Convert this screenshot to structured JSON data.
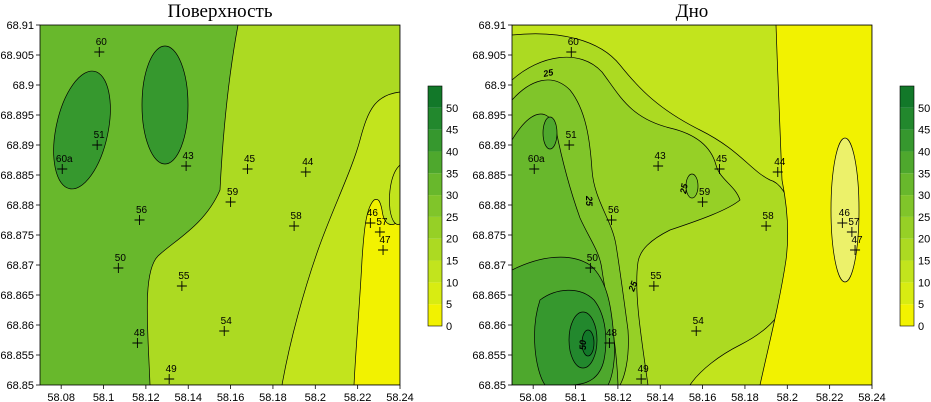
{
  "chart_data": [
    {
      "type": "contour",
      "title": "Поверхность",
      "xlabel": "",
      "ylabel": "",
      "xlim": [
        58.07,
        58.24
      ],
      "ylim": [
        68.85,
        68.91
      ],
      "xticks": [
        "58.08",
        "58.1",
        "58.12",
        "58.14",
        "58.16",
        "58.18",
        "58.2",
        "58.22",
        "58.24"
      ],
      "yticks": [
        "68.85",
        "68.855",
        "68.86",
        "68.865",
        "68.87",
        "68.875",
        "68.88",
        "68.885",
        "68.89",
        "68.895",
        "68.9",
        "68.905",
        "68.91"
      ],
      "colorbar": {
        "levels": [
          "0",
          "5",
          "10",
          "15",
          "20",
          "25",
          "30",
          "35",
          "40",
          "45",
          "50"
        ],
        "colors": [
          "#f2f200",
          "#d8ec12",
          "#c2e41d",
          "#acda22",
          "#96d026",
          "#80c52a",
          "#68b82c",
          "#4ea82d",
          "#36982e",
          "#22882d",
          "#127829"
        ]
      },
      "contour_labels": [],
      "stations": [
        {
          "name": "60",
          "x": 58.098,
          "y": 68.9055
        },
        {
          "name": "51",
          "x": 58.097,
          "y": 68.89
        },
        {
          "name": "60a",
          "x": 58.0805,
          "y": 68.886
        },
        {
          "name": "43",
          "x": 58.139,
          "y": 68.8865
        },
        {
          "name": "45",
          "x": 58.168,
          "y": 68.886
        },
        {
          "name": "44",
          "x": 58.1955,
          "y": 68.8855
        },
        {
          "name": "59",
          "x": 58.16,
          "y": 68.8805
        },
        {
          "name": "56",
          "x": 58.117,
          "y": 68.8775
        },
        {
          "name": "58",
          "x": 58.19,
          "y": 68.8765
        },
        {
          "name": "46",
          "x": 58.226,
          "y": 68.877
        },
        {
          "name": "57",
          "x": 58.2305,
          "y": 68.8755
        },
        {
          "name": "47",
          "x": 58.232,
          "y": 68.8725
        },
        {
          "name": "50",
          "x": 58.107,
          "y": 68.8695
        },
        {
          "name": "55",
          "x": 58.137,
          "y": 68.8665
        },
        {
          "name": "54",
          "x": 58.157,
          "y": 68.859
        },
        {
          "name": "48",
          "x": 58.116,
          "y": 68.857
        },
        {
          "name": "49",
          "x": 58.131,
          "y": 68.851
        }
      ]
    },
    {
      "type": "contour",
      "title": "Дно",
      "xlabel": "",
      "ylabel": "",
      "xlim": [
        58.07,
        58.24
      ],
      "ylim": [
        68.85,
        68.91
      ],
      "xticks": [
        "58.08",
        "58.1",
        "58.12",
        "58.14",
        "58.16",
        "58.18",
        "58.2",
        "58.22",
        "58.24"
      ],
      "yticks": [
        "68.85",
        "68.855",
        "68.86",
        "68.865",
        "68.87",
        "68.875",
        "68.88",
        "68.885",
        "68.89",
        "68.895",
        "68.9",
        "68.905",
        "68.91"
      ],
      "colorbar": {
        "levels": [
          "0",
          "5",
          "10",
          "15",
          "20",
          "25",
          "30",
          "35",
          "40",
          "45",
          "50"
        ],
        "colors": [
          "#f2f200",
          "#d8ec12",
          "#c2e41d",
          "#acda22",
          "#96d026",
          "#80c52a",
          "#68b82c",
          "#4ea82d",
          "#36982e",
          "#22882d",
          "#127829"
        ]
      },
      "contour_labels": [
        "25",
        "25",
        "25",
        "25",
        "50"
      ],
      "stations": [
        {
          "name": "60",
          "x": 58.098,
          "y": 68.9055
        },
        {
          "name": "51",
          "x": 58.097,
          "y": 68.89
        },
        {
          "name": "60a",
          "x": 58.0805,
          "y": 68.886
        },
        {
          "name": "43",
          "x": 58.139,
          "y": 68.8865
        },
        {
          "name": "45",
          "x": 58.168,
          "y": 68.886
        },
        {
          "name": "44",
          "x": 58.1955,
          "y": 68.8855
        },
        {
          "name": "59",
          "x": 58.16,
          "y": 68.8805
        },
        {
          "name": "56",
          "x": 58.117,
          "y": 68.8775
        },
        {
          "name": "58",
          "x": 58.19,
          "y": 68.8765
        },
        {
          "name": "46",
          "x": 58.226,
          "y": 68.877
        },
        {
          "name": "57",
          "x": 58.2305,
          "y": 68.8755
        },
        {
          "name": "47",
          "x": 58.232,
          "y": 68.8725
        },
        {
          "name": "50",
          "x": 58.107,
          "y": 68.8695
        },
        {
          "name": "55",
          "x": 58.137,
          "y": 68.8665
        },
        {
          "name": "54",
          "x": 58.157,
          "y": 68.859
        },
        {
          "name": "48",
          "x": 58.116,
          "y": 68.857
        },
        {
          "name": "49",
          "x": 58.131,
          "y": 68.851
        }
      ]
    }
  ]
}
